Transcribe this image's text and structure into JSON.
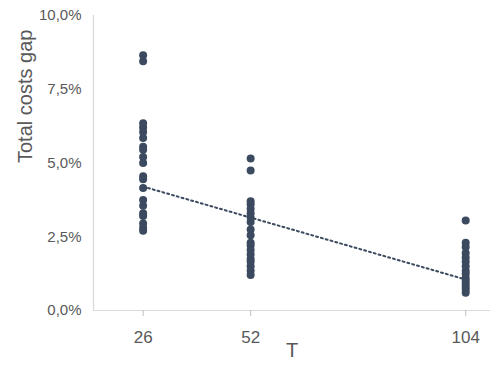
{
  "chart_data": {
    "type": "scatter",
    "x_label": "T",
    "y_label": "Total costs gap",
    "xlim": [
      14,
      110
    ],
    "xticks": [
      26,
      52,
      104
    ],
    "ylim": [
      0,
      10
    ],
    "yticks": [
      {
        "value": 0,
        "label": "0,0%"
      },
      {
        "value": 2.5,
        "label": "2,5%"
      },
      {
        "value": 5,
        "label": "5,0%"
      },
      {
        "value": 7.5,
        "label": "7,5%"
      },
      {
        "value": 10,
        "label": "10,0%"
      }
    ],
    "grid": false,
    "series": [
      {
        "type": "scatter",
        "marker": "circle",
        "color": "#3b4a5f",
        "x": [
          26,
          26,
          26,
          26,
          26,
          26,
          26,
          26,
          26,
          26,
          26,
          26,
          26,
          26,
          26,
          26,
          26,
          26,
          26,
          26,
          52,
          52,
          52,
          52,
          52,
          52,
          52,
          52,
          52,
          52,
          52,
          52,
          52,
          52,
          52,
          52,
          52,
          52,
          52,
          104,
          104,
          104,
          104,
          104,
          104,
          104,
          104,
          104,
          104,
          104,
          104,
          104,
          104,
          104
        ],
        "values": [
          8.65,
          8.45,
          6.35,
          6.2,
          6.05,
          5.85,
          5.55,
          5.45,
          5.2,
          5.0,
          4.55,
          4.45,
          4.15,
          3.75,
          3.55,
          3.3,
          3.2,
          2.95,
          2.8,
          2.7,
          5.15,
          4.75,
          3.7,
          3.6,
          3.45,
          3.3,
          3.15,
          3.0,
          2.75,
          2.55,
          2.3,
          2.2,
          2.05,
          1.9,
          1.75,
          1.65,
          1.5,
          1.35,
          1.2,
          3.05,
          2.3,
          2.15,
          1.95,
          1.8,
          1.65,
          1.5,
          1.35,
          1.25,
          1.1,
          1.0,
          0.9,
          0.8,
          0.7,
          0.6
        ]
      },
      {
        "type": "line",
        "line_style": "dotted",
        "color": "#3b4a5f",
        "x": [
          26,
          104
        ],
        "values": [
          4.2,
          1.05
        ]
      }
    ]
  }
}
